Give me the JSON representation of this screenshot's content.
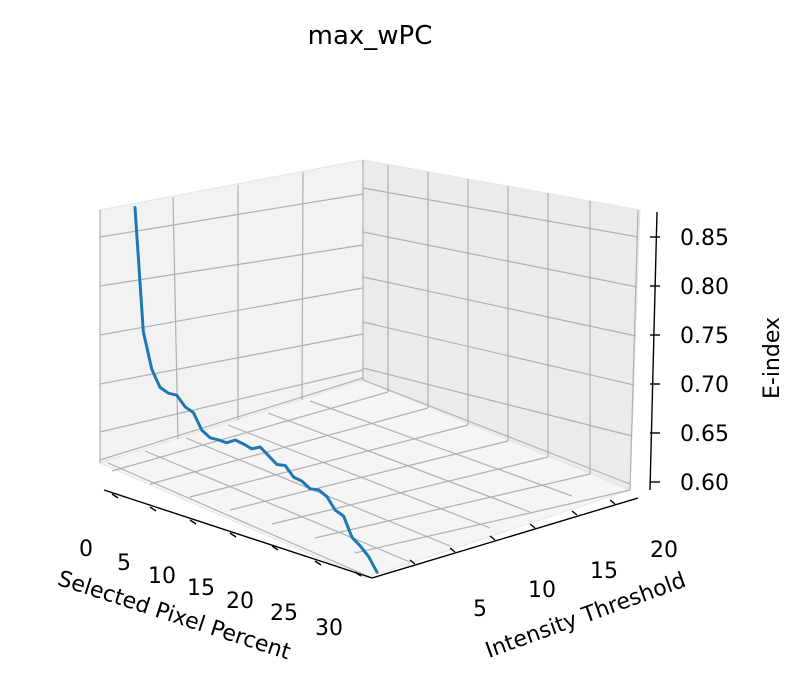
{
  "chart_data": {
    "type": "line3d",
    "title": "max_wPC",
    "xlabel": "Selected Pixel Percent",
    "ylabel": "Intensity Threshold",
    "zlabel": "E-index",
    "x_ticks": [
      "0",
      "5",
      "10",
      "15",
      "20",
      "25",
      "30"
    ],
    "y_ticks": [
      "5",
      "10",
      "15",
      "20"
    ],
    "z_ticks": [
      "0.60",
      "0.65",
      "0.70",
      "0.75",
      "0.80",
      "0.85"
    ],
    "xlim": [
      0,
      32
    ],
    "ylim": [
      0,
      22
    ],
    "zlim": [
      0.6,
      0.87
    ],
    "grid": true,
    "series": [
      {
        "color": "#1f77b4",
        "points": [
          {
            "x": 1,
            "z": 0.865
          },
          {
            "x": 2,
            "z": 0.74
          },
          {
            "x": 3,
            "z": 0.705
          },
          {
            "x": 4,
            "z": 0.69
          },
          {
            "x": 5,
            "z": 0.688
          },
          {
            "x": 6,
            "z": 0.69
          },
          {
            "x": 7,
            "z": 0.682
          },
          {
            "x": 8,
            "z": 0.68
          },
          {
            "x": 9,
            "z": 0.666
          },
          {
            "x": 10,
            "z": 0.662
          },
          {
            "x": 11,
            "z": 0.664
          },
          {
            "x": 12,
            "z": 0.665
          },
          {
            "x": 13,
            "z": 0.672
          },
          {
            "x": 14,
            "z": 0.672
          },
          {
            "x": 15,
            "z": 0.671
          },
          {
            "x": 16,
            "z": 0.677
          },
          {
            "x": 17,
            "z": 0.672
          },
          {
            "x": 18,
            "z": 0.667
          },
          {
            "x": 19,
            "z": 0.67
          },
          {
            "x": 20,
            "z": 0.662
          },
          {
            "x": 21,
            "z": 0.662
          },
          {
            "x": 22,
            "z": 0.658
          },
          {
            "x": 23,
            "z": 0.661
          },
          {
            "x": 24,
            "z": 0.658
          },
          {
            "x": 25,
            "z": 0.648
          },
          {
            "x": 26,
            "z": 0.646
          },
          {
            "x": 27,
            "z": 0.628
          },
          {
            "x": 28,
            "z": 0.623
          },
          {
            "x": 29,
            "z": 0.616
          },
          {
            "x": 30,
            "z": 0.604
          }
        ]
      }
    ]
  }
}
